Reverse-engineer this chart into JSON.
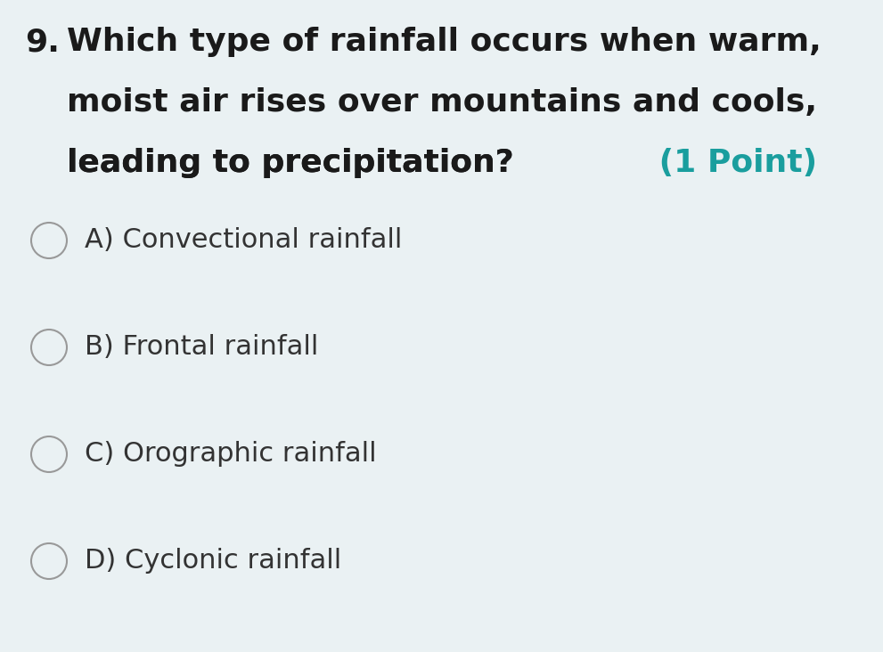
{
  "background_color": "#eaf1f3",
  "question_number": "9.",
  "question_lines": [
    "Which type of rainfall occurs when warm,",
    "moist air rises over mountains and cools,",
    "leading to precipitation?"
  ],
  "question_points": " (1 Point)",
  "question_color": "#1a1a1a",
  "points_color": "#1a9e9e",
  "options": [
    "A) Convectional rainfall",
    "B) Frontal rainfall",
    "C) Orographic rainfall",
    "D) Cyclonic rainfall"
  ],
  "option_color": "#333333",
  "circle_edge_color": "#999999",
  "circle_face_color": "#eaf1f3",
  "question_fontsize": 26,
  "option_fontsize": 22,
  "number_fontsize": 26
}
